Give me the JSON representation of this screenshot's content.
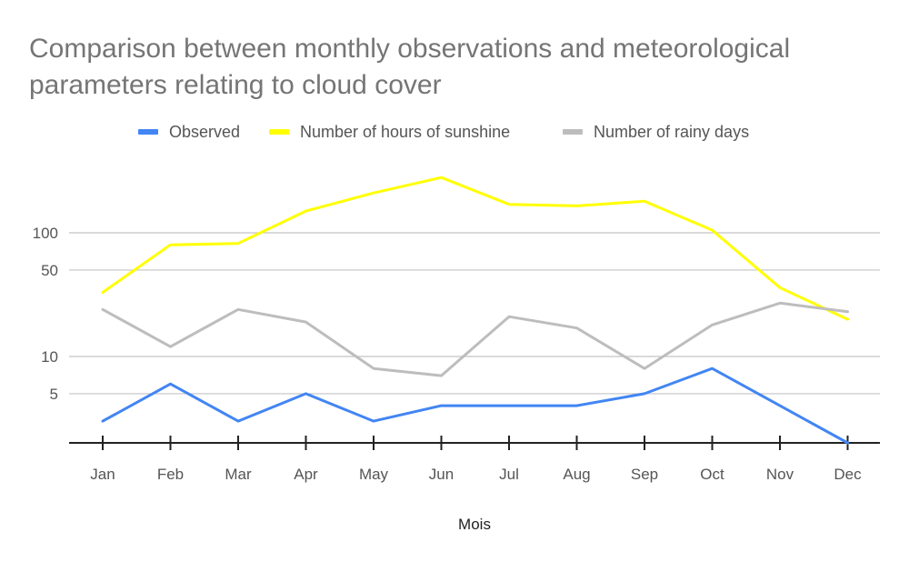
{
  "chart_data": {
    "type": "line",
    "title": "Comparison between monthly observations and meteorological parameters relating to cloud cover",
    "xlabel": "Mois",
    "ylabel": "",
    "y_scale": "log",
    "yticks": [
      5,
      10,
      50,
      100
    ],
    "categories": [
      "Jan",
      "Feb",
      "Mar",
      "Apr",
      "May",
      "Jun",
      "Jul",
      "Aug",
      "Sep",
      "Oct",
      "Nov",
      "Dec"
    ],
    "series": [
      {
        "name": "Observed",
        "color": "#4285f4",
        "values": [
          3,
          6,
          3,
          5,
          3,
          4,
          4,
          4,
          5,
          8,
          4,
          2
        ]
      },
      {
        "name": "Number of hours of sunshine",
        "color": "#ffff00",
        "values": [
          33,
          80,
          82,
          150,
          210,
          280,
          170,
          165,
          180,
          105,
          36,
          20
        ]
      },
      {
        "name": "Number of rainy days",
        "color": "#bdbdbd",
        "values": [
          24,
          12,
          24,
          19,
          8,
          7,
          21,
          17,
          8,
          18,
          27,
          23
        ]
      }
    ],
    "legend_position": "top-center",
    "grid": true
  }
}
